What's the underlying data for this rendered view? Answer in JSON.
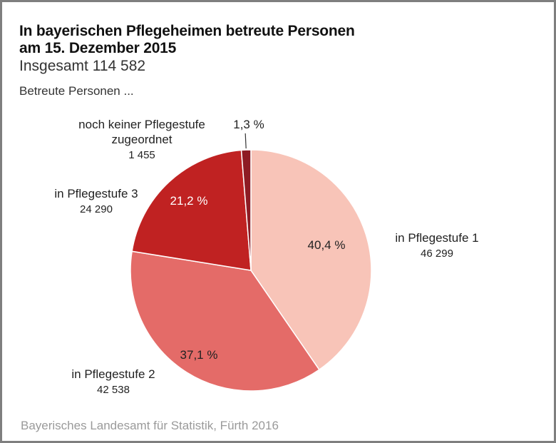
{
  "header": {
    "title_line1": "In bayerischen Pflegeheimen betreute Personen",
    "title_line2": "am 15. Dezember 2015",
    "subtitle": "Insgesamt 114 582",
    "intro": "Betreute Personen ..."
  },
  "footer": {
    "source": "Bayerisches Landesamt für Statistik, Fürth 2016"
  },
  "chart_data": {
    "type": "pie",
    "title": "In bayerischen Pflegeheimen betreute Personen am 15. Dezember 2015",
    "subtitle": "Insgesamt 114 582",
    "total": 114582,
    "start": "12 o'clock, clockwise",
    "slices": [
      {
        "label_lines": [
          "in Pflegestufe 1"
        ],
        "value": 46299,
        "value_label": "46 299",
        "percent": 40.4,
        "percent_label": "40,4 %",
        "color": "#f8c4b8",
        "pct_color": "#222222"
      },
      {
        "label_lines": [
          "in Pflegestufe 2"
        ],
        "value": 42538,
        "value_label": "42 538",
        "percent": 37.1,
        "percent_label": "37,1 %",
        "color": "#e46b68",
        "pct_color": "#222222"
      },
      {
        "label_lines": [
          "in Pflegestufe 3"
        ],
        "value": 24290,
        "value_label": "24 290",
        "percent": 21.2,
        "percent_label": "21,2 %",
        "color": "#c02222",
        "pct_color": "#ffffff"
      },
      {
        "label_lines": [
          "noch keiner Pflegestufe",
          "zugeordnet"
        ],
        "value": 1455,
        "value_label": "1 455",
        "percent": 1.3,
        "percent_label": "1,3 %",
        "color": "#8e1c24",
        "pct_color": "#222222"
      }
    ]
  }
}
